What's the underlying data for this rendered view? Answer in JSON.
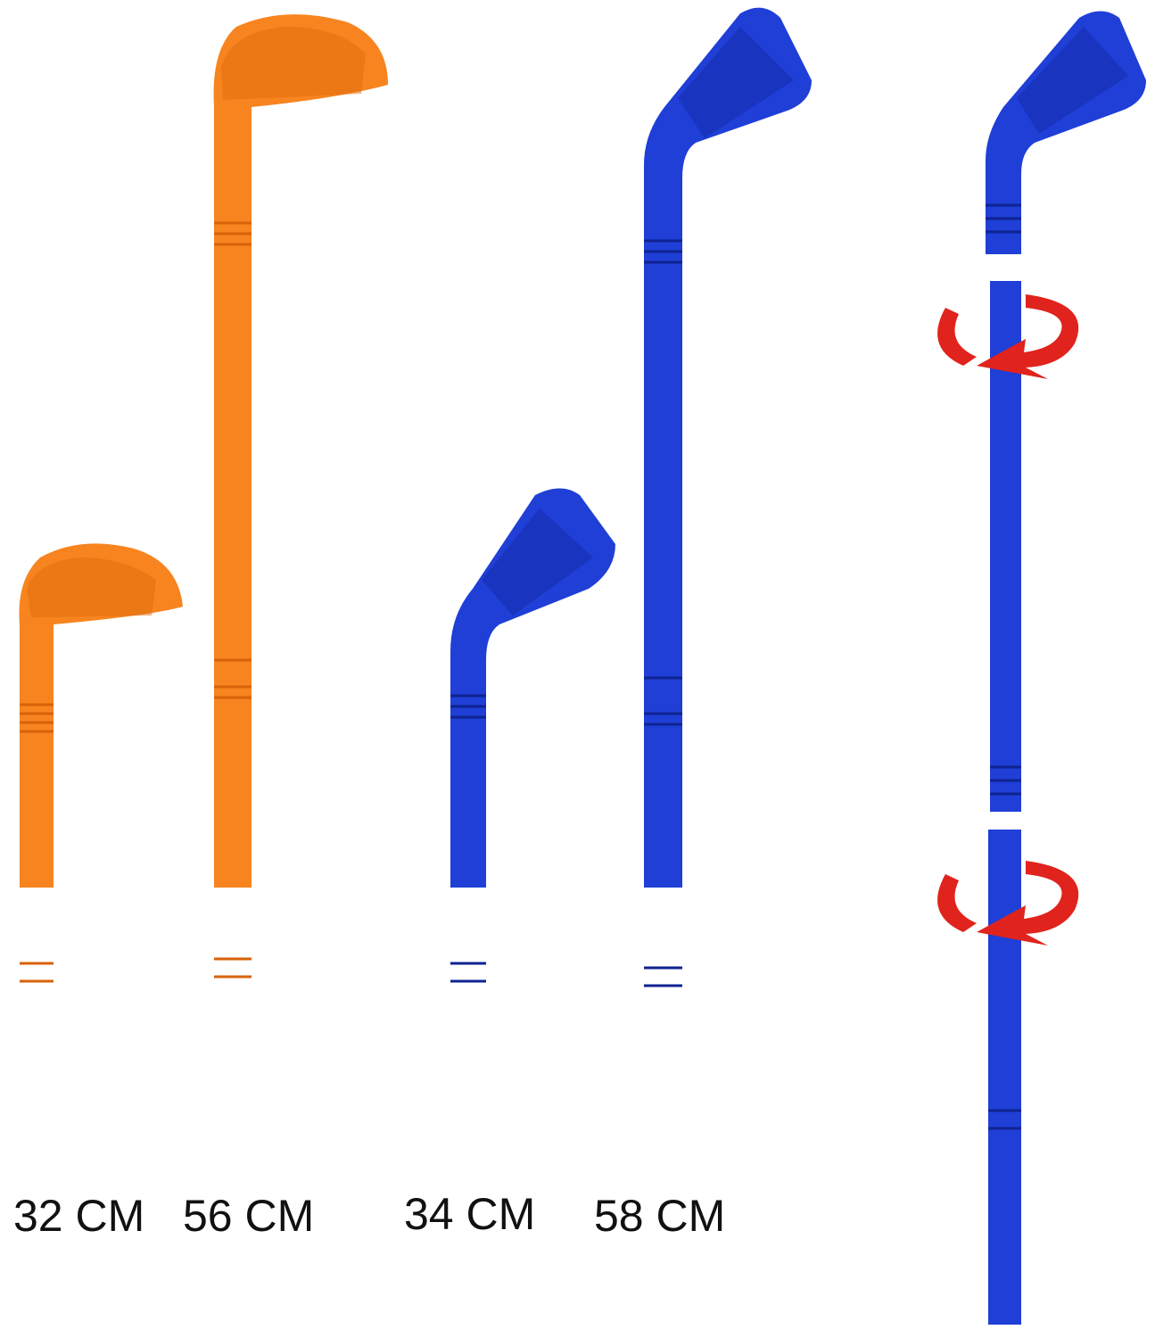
{
  "labels": [
    "32 CM",
    "56 CM",
    "34 CM",
    "58 CM"
  ]
}
